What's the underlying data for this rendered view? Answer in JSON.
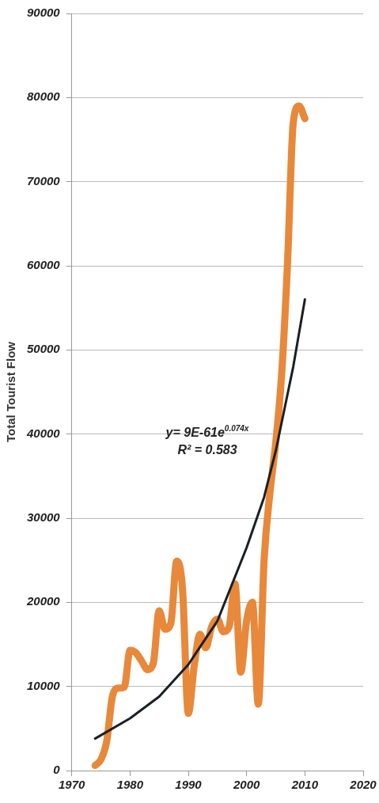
{
  "chart_data": {
    "type": "line",
    "ylabel": "Total Tourist Flow",
    "x": [
      1974,
      1975,
      1976,
      1977,
      1978,
      1979,
      1980,
      1981,
      1982,
      1983,
      1984,
      1985,
      1986,
      1987,
      1988,
      1989,
      1990,
      1991,
      1992,
      1993,
      1994,
      1995,
      1996,
      1997,
      1998,
      1999,
      2000,
      2001,
      2002,
      2003,
      2004,
      2005,
      2006,
      2007,
      2008,
      2009,
      2010
    ],
    "series": [
      {
        "color": "#e8883a",
        "values": [
          600,
          1300,
          3500,
          8900,
          9800,
          9900,
          14300,
          14000,
          13000,
          12000,
          12800,
          19000,
          16800,
          17500,
          24900,
          21600,
          6800,
          12400,
          16200,
          14600,
          17100,
          18000,
          16500,
          17100,
          22200,
          11700,
          17800,
          20000,
          7900,
          25000,
          33000,
          39000,
          47000,
          60000,
          77000,
          79000,
          77500
        ]
      },
      {
        "type": "line",
        "color": "#1a1f24",
        "x": [
          1974,
          1980,
          1985,
          1990,
          1995,
          2000,
          2003,
          2005,
          2008,
          2010
        ],
        "values": [
          3800,
          6200,
          8800,
          12600,
          17800,
          26500,
          32500,
          38000,
          48000,
          56000
        ]
      }
    ],
    "xlim": [
      1970,
      2020
    ],
    "xticks": [
      1970,
      1980,
      1990,
      2000,
      2010,
      2020
    ],
    "ylim": [
      0,
      90000
    ],
    "yticks": [
      0,
      10000,
      20000,
      30000,
      40000,
      50000,
      60000,
      70000,
      80000,
      90000
    ],
    "grid": "y",
    "legend": false,
    "marker": "none",
    "line_style": "solid",
    "annotations": [
      "y= 9E-61e$^{0.074x}$",
      "R² = 0.583"
    ]
  }
}
